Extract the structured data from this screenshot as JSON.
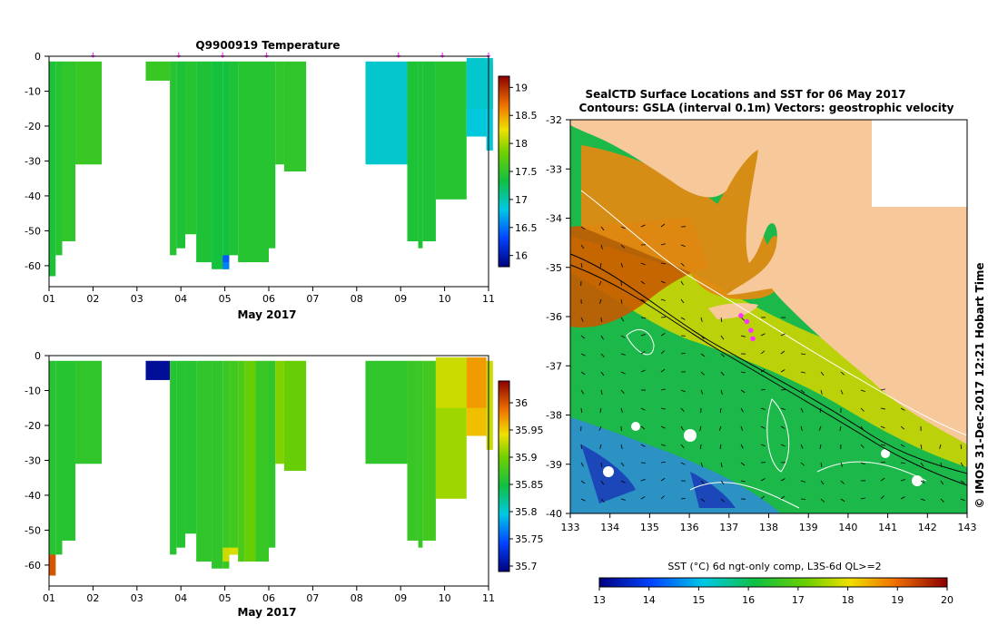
{
  "chart_data": [
    {
      "type": "heatmap",
      "id": "temperature",
      "title": "Q9900919  Temperature",
      "xlabel": "May 2017",
      "x_ticks": [
        "01",
        "02",
        "03",
        "04",
        "05",
        "06",
        "07",
        "08",
        "09",
        "10",
        "11"
      ],
      "xlim": [
        1,
        11
      ],
      "ylim": [
        -66,
        0
      ],
      "y_ticks": [
        0,
        -10,
        -20,
        -30,
        -40,
        -50,
        -60
      ],
      "y_tick_labels": [
        "0",
        "-10",
        "-20",
        "-30",
        "-40",
        "-50",
        "-60"
      ],
      "colorbar": {
        "min": 15.8,
        "max": 19.2,
        "ticks": [
          16,
          16.5,
          17,
          17.5,
          18,
          18.5,
          19
        ],
        "tick_labels": [
          "16",
          "16.5",
          "17",
          "17.5",
          "18",
          "18.5",
          "19"
        ]
      },
      "profile_markers": [
        2.0,
        3.95,
        4.95,
        5.95,
        8.95,
        9.95,
        11.0
      ],
      "profiles": [
        {
          "x0": 1.0,
          "x1": 1.15,
          "depth": -63,
          "value": 17.4
        },
        {
          "x0": 1.15,
          "x1": 1.3,
          "depth": -57,
          "value": 17.45
        },
        {
          "x0": 1.3,
          "x1": 1.6,
          "depth": -53,
          "value": 17.5
        },
        {
          "x0": 1.6,
          "x1": 2.2,
          "depth": -31,
          "value": 17.55
        },
        {
          "x0": 3.2,
          "x1": 3.75,
          "depth": -7,
          "value": 17.55
        },
        {
          "x0": 3.75,
          "x1": 3.9,
          "depth": -57,
          "value": 17.45
        },
        {
          "x0": 3.9,
          "x1": 4.1,
          "depth": -55,
          "value": 17.4
        },
        {
          "x0": 4.1,
          "x1": 4.35,
          "depth": -51,
          "value": 17.45
        },
        {
          "x0": 4.35,
          "x1": 4.7,
          "depth": -59,
          "value": 17.4
        },
        {
          "x0": 4.7,
          "x1": 4.95,
          "depth": -61,
          "value": 17.35
        },
        {
          "x0": 4.95,
          "x1": 5.1,
          "depth": -61,
          "value": 17.35
        },
        {
          "x0": 5.1,
          "x1": 5.3,
          "depth": -57,
          "value": 17.4
        },
        {
          "x0": 5.3,
          "x1": 6.0,
          "depth": -59,
          "value": 17.45
        },
        {
          "x0": 6.0,
          "x1": 6.15,
          "depth": -55,
          "value": 17.45
        },
        {
          "x0": 6.15,
          "x1": 6.35,
          "depth": -31,
          "value": 17.5
        },
        {
          "x0": 6.35,
          "x1": 6.85,
          "depth": -33,
          "value": 17.5
        },
        {
          "x0": 8.2,
          "x1": 9.15,
          "depth": -31,
          "value": 16.9
        },
        {
          "x0": 9.15,
          "x1": 9.4,
          "depth": -53,
          "value": 17.4
        },
        {
          "x0": 9.4,
          "x1": 9.5,
          "depth": -55,
          "value": 17.4
        },
        {
          "x0": 9.5,
          "x1": 9.8,
          "depth": -53,
          "value": 17.4
        },
        {
          "x0": 9.8,
          "x1": 10.5,
          "depth": -41,
          "value": 17.45
        },
        {
          "x0": 10.5,
          "x1": 10.95,
          "depth": -23,
          "value": 16.85
        },
        {
          "x0": 10.95,
          "x1": 11.1,
          "depth": -27,
          "value": 16.85
        }
      ],
      "anomalies": [
        {
          "x0": 4.95,
          "x1": 5.1,
          "d0": -57,
          "d1": -59,
          "value": 16.4
        },
        {
          "x0": 4.95,
          "x1": 5.1,
          "d0": -59,
          "d1": -61,
          "value": 16.55
        },
        {
          "x0": 10.5,
          "x1": 10.95,
          "d0": -0.5,
          "d1": -15,
          "value": 16.9
        },
        {
          "x0": 10.95,
          "x1": 11.1,
          "d0": -0.5,
          "d1": -15,
          "value": 16.9
        }
      ]
    },
    {
      "type": "heatmap",
      "id": "salinity",
      "title": "",
      "xlabel": "May 2017",
      "x_ticks": [
        "01",
        "02",
        "03",
        "04",
        "05",
        "06",
        "07",
        "08",
        "09",
        "10",
        "11"
      ],
      "xlim": [
        1,
        11
      ],
      "ylim": [
        -66,
        0
      ],
      "y_ticks": [
        0,
        -10,
        -20,
        -30,
        -40,
        -50,
        -60
      ],
      "y_tick_labels": [
        "0",
        "-10",
        "-20",
        "-30",
        "-40",
        "-50",
        "-60"
      ],
      "colorbar": {
        "min": 35.69,
        "max": 36.04,
        "ticks": [
          35.7,
          35.75,
          35.8,
          35.85,
          35.9,
          35.95,
          36
        ],
        "tick_labels": [
          "35.7",
          "35.75",
          "35.8",
          "35.85",
          "35.9",
          "35.95",
          "36"
        ]
      },
      "profiles": [
        {
          "x0": 1.0,
          "x1": 1.15,
          "depth": -63,
          "value": 35.86
        },
        {
          "x0": 1.15,
          "x1": 1.3,
          "depth": -57,
          "value": 35.86
        },
        {
          "x0": 1.3,
          "x1": 1.6,
          "depth": -53,
          "value": 35.86
        },
        {
          "x0": 1.6,
          "x1": 2.2,
          "depth": -31,
          "value": 35.865
        },
        {
          "x0": 3.2,
          "x1": 3.75,
          "depth": -7,
          "value": 35.7
        },
        {
          "x0": 3.75,
          "x1": 3.9,
          "depth": -57,
          "value": 35.86
        },
        {
          "x0": 3.9,
          "x1": 4.1,
          "depth": -55,
          "value": 35.86
        },
        {
          "x0": 4.1,
          "x1": 4.35,
          "depth": -51,
          "value": 35.86
        },
        {
          "x0": 4.35,
          "x1": 4.7,
          "depth": -59,
          "value": 35.865
        },
        {
          "x0": 4.7,
          "x1": 4.95,
          "depth": -61,
          "value": 35.865
        },
        {
          "x0": 4.95,
          "x1": 5.1,
          "depth": -61,
          "value": 35.87
        },
        {
          "x0": 5.1,
          "x1": 5.3,
          "depth": -57,
          "value": 35.875
        },
        {
          "x0": 5.3,
          "x1": 5.45,
          "depth": -59,
          "value": 35.88
        },
        {
          "x0": 5.45,
          "x1": 5.7,
          "depth": -59,
          "value": 35.895
        },
        {
          "x0": 5.7,
          "x1": 6.0,
          "depth": -59,
          "value": 35.87
        },
        {
          "x0": 6.0,
          "x1": 6.15,
          "depth": -55,
          "value": 35.865
        },
        {
          "x0": 6.15,
          "x1": 6.35,
          "depth": -31,
          "value": 35.905
        },
        {
          "x0": 6.35,
          "x1": 6.85,
          "depth": -33,
          "value": 35.895
        },
        {
          "x0": 8.2,
          "x1": 9.15,
          "depth": -31,
          "value": 35.865
        },
        {
          "x0": 9.15,
          "x1": 9.4,
          "depth": -53,
          "value": 35.87
        },
        {
          "x0": 9.4,
          "x1": 9.5,
          "depth": -55,
          "value": 35.87
        },
        {
          "x0": 9.5,
          "x1": 9.8,
          "depth": -53,
          "value": 35.875
        },
        {
          "x0": 9.8,
          "x1": 10.5,
          "depth": -41,
          "value": 35.915
        },
        {
          "x0": 10.5,
          "x1": 10.95,
          "depth": -23,
          "value": 35.955
        },
        {
          "x0": 10.95,
          "x1": 11.1,
          "depth": -27,
          "value": 35.93
        }
      ],
      "anomalies": [
        {
          "x0": 1.0,
          "x1": 1.15,
          "d0": -57,
          "d1": -63,
          "value": 36.0
        },
        {
          "x0": 4.95,
          "x1": 5.1,
          "d0": -55,
          "d1": -59,
          "value": 35.93
        },
        {
          "x0": 5.1,
          "x1": 5.3,
          "d0": -55,
          "d1": -57,
          "value": 35.935
        },
        {
          "x0": 9.8,
          "x1": 10.5,
          "d0": -0.5,
          "d1": -15,
          "value": 35.93
        },
        {
          "x0": 10.5,
          "x1": 10.95,
          "d0": -0.5,
          "d1": -15,
          "value": 35.97
        }
      ]
    },
    {
      "type": "map",
      "id": "sst-map",
      "title": "SealCTD Surface Locations and SST for 06 May 2017",
      "subtitle": "Contours: GSLA (interval 0.1m) Vectors: geostrophic velocity",
      "xlim": [
        133,
        143
      ],
      "ylim": [
        -40,
        -32
      ],
      "x_ticks": [
        133,
        134,
        135,
        136,
        137,
        138,
        139,
        140,
        141,
        142,
        143
      ],
      "x_tick_labels": [
        "133",
        "134",
        "135",
        "136",
        "137",
        "138",
        "139",
        "140",
        "141",
        "142",
        "143"
      ],
      "y_ticks": [
        -32,
        -33,
        -34,
        -35,
        -36,
        -37,
        -38,
        -39,
        -40
      ],
      "y_tick_labels": [
        "-32",
        "-33",
        "-34",
        "-35",
        "-36",
        "-37",
        "-38",
        "-39",
        "-40"
      ],
      "seal_track": [
        [
          137.3,
          -35.98
        ],
        [
          137.45,
          -36.1
        ],
        [
          137.55,
          -36.28
        ],
        [
          137.6,
          -36.45
        ]
      ],
      "land_color": "#f7c99a",
      "colorbar": {
        "label": "SST (°C) 6d ngt-only comp, L3S-6d QL>=2",
        "min": 13,
        "max": 20,
        "ticks": [
          13,
          14,
          15,
          16,
          17,
          18,
          19,
          20
        ],
        "tick_labels": [
          "13",
          "14",
          "15",
          "16",
          "17",
          "18",
          "19",
          "20"
        ]
      },
      "credit": "© IMOS 31-Dec-2017 12:21 Hobart Time"
    }
  ],
  "colors": {
    "marker": "#ff33ff",
    "axis": "#000000",
    "background": "#ffffff",
    "land": "#f7c99a"
  }
}
